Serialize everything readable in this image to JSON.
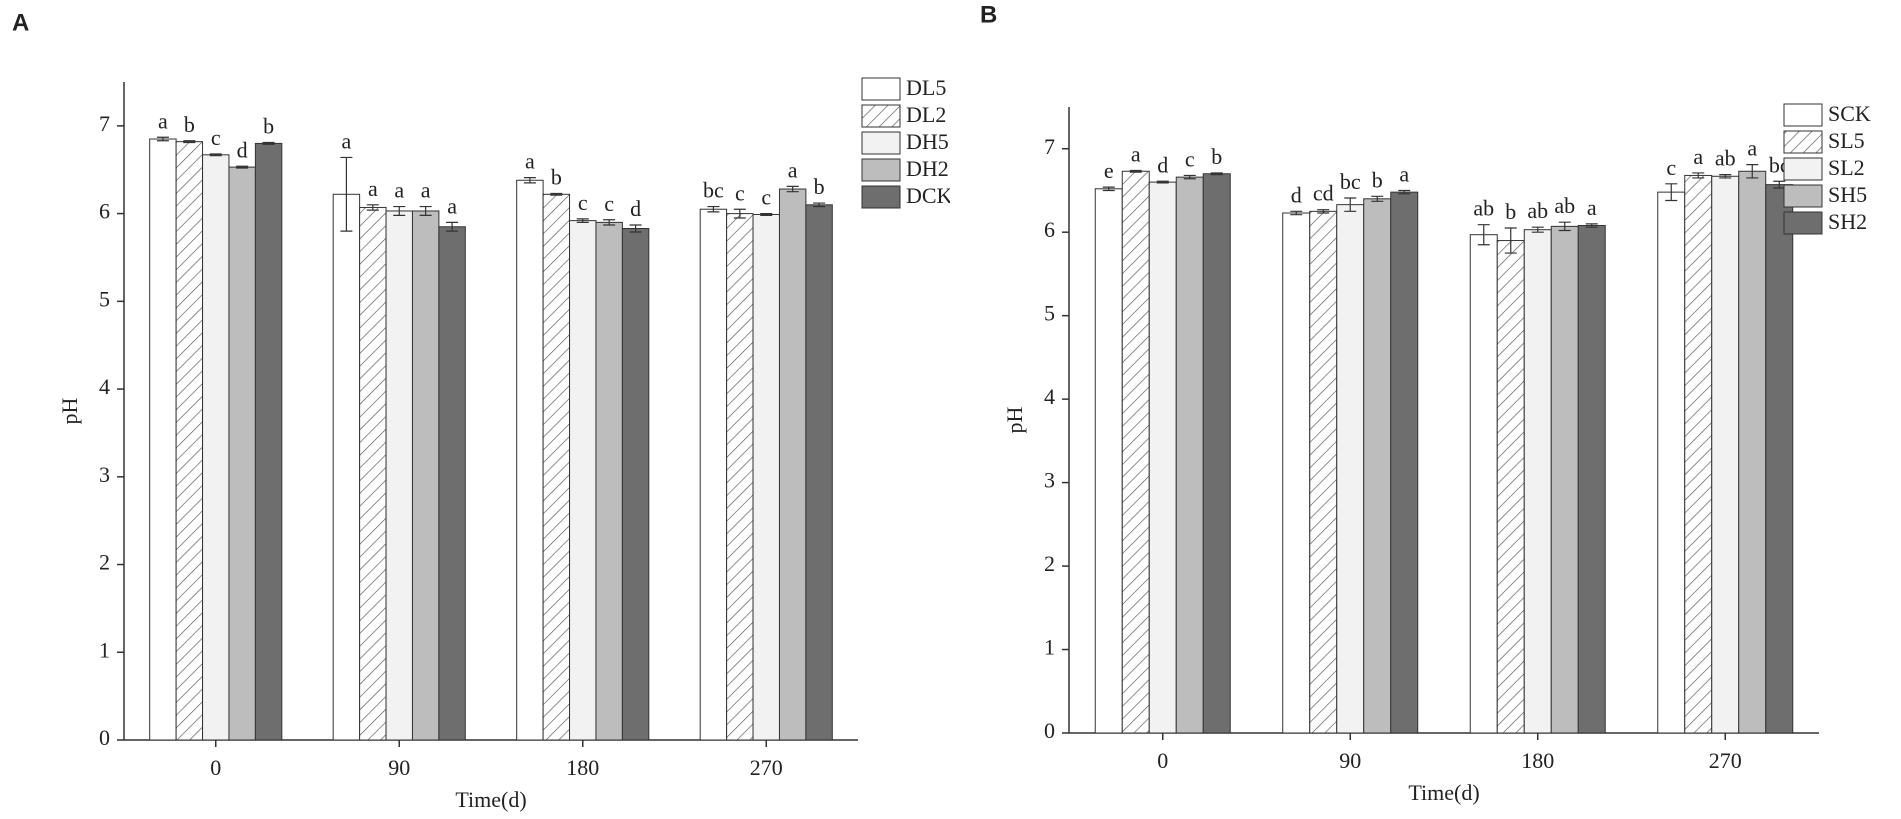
{
  "chart_data": [
    {
      "type": "bar",
      "panel": "A",
      "xlabel": "Time(d)",
      "ylabel": "pH",
      "categories": [
        "0",
        "90",
        "180",
        "270"
      ],
      "ylim": [
        0,
        7.5
      ],
      "yticks": [
        0,
        1,
        2,
        3,
        4,
        5,
        6,
        7
      ],
      "series": [
        {
          "name": "DL5",
          "color": "#ffffff",
          "hatch": false,
          "values": [
            6.85,
            6.22,
            6.38,
            6.05
          ],
          "errors": [
            0.02,
            0.42,
            0.03,
            0.03
          ],
          "labels": [
            "a",
            "a",
            "a",
            "bc"
          ]
        },
        {
          "name": "DL2",
          "color": "#ffffff",
          "hatch": true,
          "values": [
            6.82,
            6.07,
            6.22,
            6.0
          ],
          "errors": [
            0.01,
            0.03,
            0.01,
            0.05
          ],
          "labels": [
            "b",
            "a",
            "b",
            "c"
          ]
        },
        {
          "name": "DH5",
          "color": "#f2f2f2",
          "hatch": false,
          "values": [
            6.67,
            6.03,
            5.92,
            5.99
          ],
          "errors": [
            0.01,
            0.05,
            0.02,
            0.01
          ],
          "labels": [
            "c",
            "a",
            "c",
            "c"
          ]
        },
        {
          "name": "DH2",
          "color": "#bdbdbd",
          "hatch": false,
          "values": [
            6.53,
            6.03,
            5.9,
            6.28
          ],
          "errors": [
            0.01,
            0.05,
            0.03,
            0.03
          ],
          "labels": [
            "d",
            "a",
            "c",
            "a"
          ]
        },
        {
          "name": "DCK",
          "color": "#6e6e6e",
          "hatch": false,
          "values": [
            6.8,
            5.85,
            5.83,
            6.1
          ],
          "errors": [
            0.01,
            0.05,
            0.04,
            0.02
          ],
          "labels": [
            "b",
            "a",
            "d",
            "b"
          ]
        }
      ]
    },
    {
      "type": "bar",
      "panel": "B",
      "xlabel": "Time(d)",
      "ylabel": "pH",
      "categories": [
        "0",
        "90",
        "180",
        "270"
      ],
      "ylim": [
        0,
        7.5
      ],
      "yticks": [
        0,
        1,
        2,
        3,
        4,
        5,
        6,
        7
      ],
      "series": [
        {
          "name": "SCK",
          "color": "#ffffff",
          "hatch": false,
          "values": [
            6.52,
            6.23,
            5.97,
            6.48
          ],
          "errors": [
            0.02,
            0.02,
            0.12,
            0.1
          ],
          "labels": [
            "e",
            "d",
            "ab",
            "c"
          ]
        },
        {
          "name": "SL5",
          "color": "#ffffff",
          "hatch": true,
          "values": [
            6.73,
            6.25,
            5.9,
            6.68
          ],
          "errors": [
            0.01,
            0.02,
            0.15,
            0.03
          ],
          "labels": [
            "a",
            "cd",
            "b",
            "a"
          ]
        },
        {
          "name": "SL2",
          "color": "#f2f2f2",
          "hatch": false,
          "values": [
            6.6,
            6.33,
            6.03,
            6.67
          ],
          "errors": [
            0.01,
            0.08,
            0.03,
            0.02
          ],
          "labels": [
            "d",
            "bc",
            "ab",
            "ab"
          ]
        },
        {
          "name": "SH5",
          "color": "#bdbdbd",
          "hatch": false,
          "values": [
            6.66,
            6.4,
            6.07,
            6.73
          ],
          "errors": [
            0.02,
            0.03,
            0.05,
            0.08
          ],
          "labels": [
            "c",
            "b",
            "ab",
            "a"
          ]
        },
        {
          "name": "SH2",
          "color": "#6e6e6e",
          "hatch": false,
          "values": [
            6.7,
            6.48,
            6.08,
            6.57
          ],
          "errors": [
            0.01,
            0.02,
            0.02,
            0.04
          ],
          "labels": [
            "b",
            "a",
            "a",
            "bc"
          ]
        }
      ]
    }
  ]
}
